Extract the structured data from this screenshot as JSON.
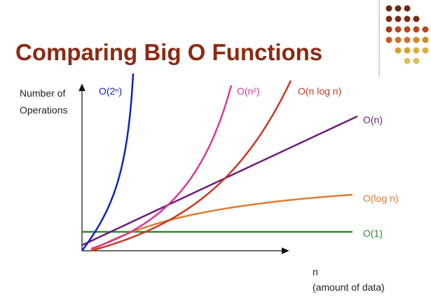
{
  "title": "Comparing Big O Functions",
  "axes": {
    "y_label": [
      "Number of",
      "Operations"
    ],
    "x_label": [
      "n",
      "(amount of data)"
    ]
  },
  "curves": [
    {
      "label": "O(2ⁿ)"
    },
    {
      "label": "O(n²)"
    },
    {
      "label": "O(n log n)"
    },
    {
      "label": "O(n)"
    },
    {
      "label": "O(log n)"
    },
    {
      "label": "O(1)"
    }
  ]
}
